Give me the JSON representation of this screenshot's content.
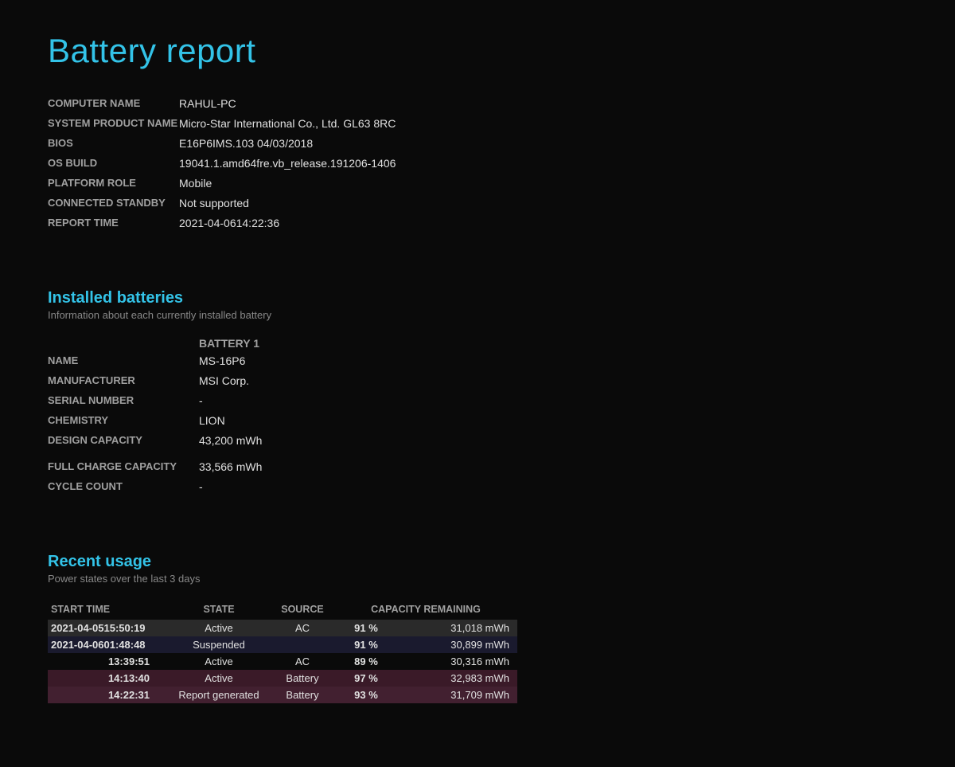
{
  "page_title": "Battery report",
  "colors": {
    "background": "#0a0a0a",
    "accent": "#33c3e8",
    "text": "#e0e0e0",
    "label": "#a0a0a0",
    "subtitle": "#888888",
    "row_gray": "#2a2a2a",
    "row_darkblue": "#1a1a2e",
    "row_maroon1": "#3a1a28",
    "row_maroon2": "#422030"
  },
  "system_info": {
    "rows": [
      {
        "label": "COMPUTER NAME",
        "value": "RAHUL-PC"
      },
      {
        "label": "SYSTEM PRODUCT NAME",
        "value": "Micro-Star International Co., Ltd. GL63 8RC"
      },
      {
        "label": "BIOS",
        "value": "E16P6IMS.103 04/03/2018"
      },
      {
        "label": "OS BUILD",
        "value": "19041.1.amd64fre.vb_release.191206-1406"
      },
      {
        "label": "PLATFORM ROLE",
        "value": "Mobile"
      },
      {
        "label": "CONNECTED STANDBY",
        "value": "Not supported"
      },
      {
        "label": "REPORT TIME",
        "value": "2021-04-0614:22:36"
      }
    ]
  },
  "installed_batteries": {
    "title": "Installed batteries",
    "subtitle": "Information about each currently installed battery",
    "battery_header": "BATTERY 1",
    "rows_a": [
      {
        "label": "NAME",
        "value": "MS-16P6"
      },
      {
        "label": "MANUFACTURER",
        "value": "MSI Corp."
      },
      {
        "label": "SERIAL NUMBER",
        "value": "-"
      },
      {
        "label": "CHEMISTRY",
        "value": "LION"
      },
      {
        "label": "DESIGN CAPACITY",
        "value": "43,200 mWh"
      }
    ],
    "rows_b": [
      {
        "label": "FULL CHARGE CAPACITY",
        "value": "33,566 mWh"
      },
      {
        "label": "CYCLE COUNT",
        "value": "-"
      }
    ]
  },
  "recent_usage": {
    "title": "Recent usage",
    "subtitle": "Power states over the last 3 days",
    "headers": {
      "start_time": "START TIME",
      "state": "STATE",
      "source": "SOURCE",
      "capacity": "CAPACITY REMAINING"
    },
    "rows": [
      {
        "start": "2021-04-0515:50:19",
        "state": "Active",
        "source": "AC",
        "pct": "91 %",
        "mwh": "31,018 mWh",
        "style": "row-gray"
      },
      {
        "start": "2021-04-0601:48:48",
        "state": "Suspended",
        "source": "",
        "pct": "91 %",
        "mwh": "30,899 mWh",
        "style": "row-darkblue"
      },
      {
        "start": "13:39:51",
        "state": "Active",
        "source": "AC",
        "pct": "89 %",
        "mwh": "30,316 mWh",
        "style": "row-none"
      },
      {
        "start": "14:13:40",
        "state": "Active",
        "source": "Battery",
        "pct": "97 %",
        "mwh": "32,983 mWh",
        "style": "row-maroon1"
      },
      {
        "start": "14:22:31",
        "state": "Report generated",
        "source": "Battery",
        "pct": "93 %",
        "mwh": "31,709 mWh",
        "style": "row-maroon2"
      }
    ]
  }
}
